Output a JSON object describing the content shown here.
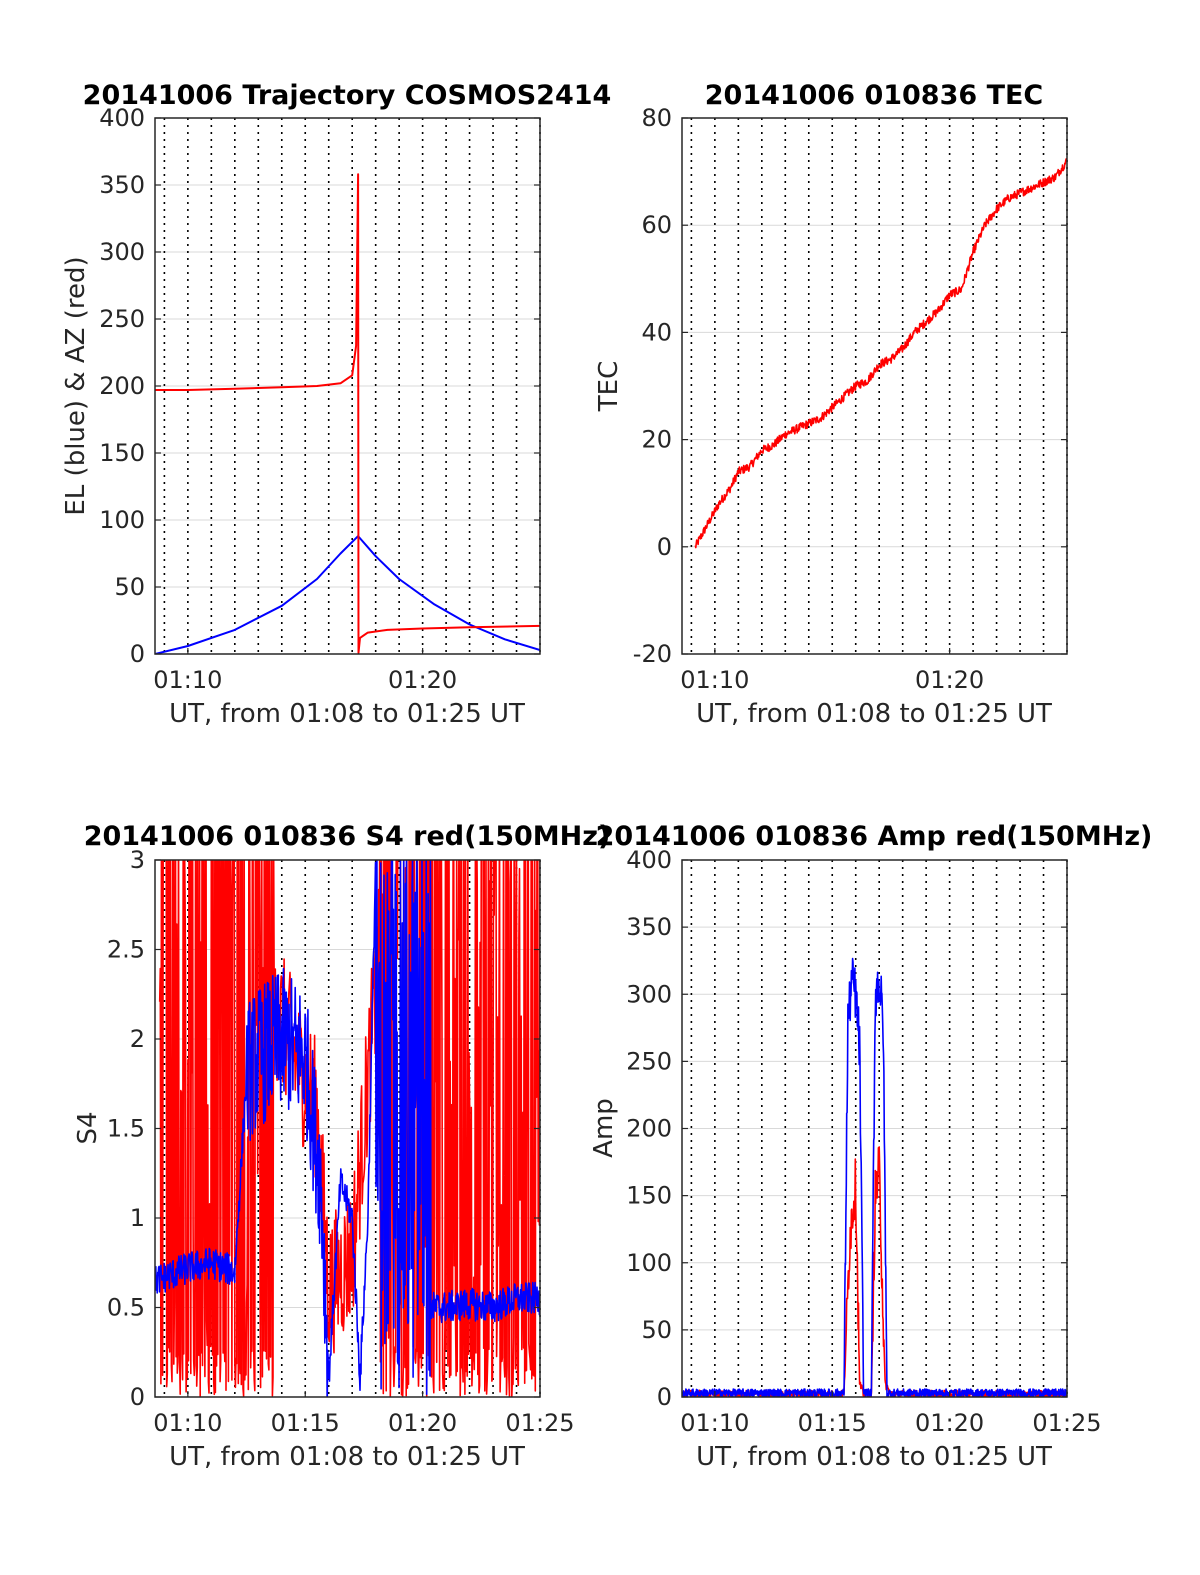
{
  "colors": {
    "el": "#0000ff",
    "az": "#ff0000",
    "grid": "#d9d9d9",
    "vline": "#000000"
  },
  "chart_data": [
    {
      "type": "line",
      "title": "20141006 Trajectory COSMOS2414",
      "xlabel": "UT, from 01:08 to 01:25 UT",
      "ylabel": "EL (blue) & AZ (red)",
      "xlim": [
        "01:08:36",
        "01:25:00"
      ],
      "ylim": [
        0,
        400
      ],
      "xticks": [
        "01:10",
        "01:20"
      ],
      "yticks": [
        0,
        50,
        100,
        150,
        200,
        250,
        300,
        350,
        400
      ],
      "vertical_dotted_lines": [
        "01:09:00",
        "01:10:00",
        "01:11:00",
        "01:12:00",
        "01:13:00",
        "01:14:00",
        "01:15:00",
        "01:16:00",
        "01:17:00",
        "01:18:00",
        "01:19:00",
        "01:20:00",
        "01:21:00",
        "01:22:00",
        "01:23:00",
        "01:24:00",
        "01:25:00"
      ],
      "series": [
        {
          "color": "blue",
          "x": [
            "01:08:36",
            "01:10:00",
            "01:12:00",
            "01:14:00",
            "01:15:30",
            "01:16:30",
            "01:17:15",
            "01:18:00",
            "01:19:00",
            "01:20:30",
            "01:22:00",
            "01:23:30",
            "01:25:00"
          ],
          "y": [
            0,
            6,
            18,
            36,
            56,
            75,
            88,
            73,
            56,
            37,
            22,
            11,
            3
          ]
        },
        {
          "color": "red",
          "x": [
            "01:08:36",
            "01:10:00",
            "01:12:00",
            "01:14:00",
            "01:15:30",
            "01:16:30",
            "01:17:00",
            "01:17:10",
            "01:17:15",
            "01:17:16",
            "01:17:20",
            "01:17:40",
            "01:18:30",
            "01:20:00",
            "01:22:00",
            "01:25:00"
          ],
          "y": [
            197,
            197,
            198,
            199,
            200,
            202,
            208,
            230,
            358,
            1,
            12,
            16,
            18,
            19,
            20,
            21
          ]
        }
      ]
    },
    {
      "type": "line",
      "title": "20141006 010836 TEC",
      "xlabel": "UT, from 01:08 to 01:25 UT",
      "ylabel": "TEC",
      "xlim": [
        "01:08:36",
        "01:25:00"
      ],
      "ylim": [
        -20,
        80
      ],
      "xticks": [
        "01:10",
        "01:20"
      ],
      "yticks": [
        -20,
        0,
        20,
        40,
        60,
        80
      ],
      "series": [
        {
          "color": "red",
          "x": [
            "01:09:10",
            "01:09:40",
            "01:10:10",
            "01:10:40",
            "01:11:00",
            "01:11:30",
            "01:12:00",
            "01:12:30",
            "01:13:00",
            "01:13:30",
            "01:14:00",
            "01:14:30",
            "01:15:00",
            "01:15:30",
            "01:16:00",
            "01:16:30",
            "01:17:00",
            "01:17:30",
            "01:18:00",
            "01:18:30",
            "01:19:00",
            "01:19:30",
            "01:20:00",
            "01:20:30",
            "01:21:00",
            "01:21:30",
            "01:22:00",
            "01:22:30",
            "01:23:00",
            "01:23:30",
            "01:24:00",
            "01:24:30",
            "01:25:00"
          ],
          "y": [
            0,
            4,
            8,
            11,
            14,
            15,
            18,
            19,
            21,
            22,
            23,
            24,
            26,
            28,
            30,
            31,
            34,
            35,
            37,
            40,
            42,
            44,
            47,
            48,
            55,
            60,
            63,
            65,
            66,
            67,
            68,
            69,
            72
          ]
        }
      ]
    },
    {
      "type": "line",
      "title": "20141006 010836 S4 red(150MHz)",
      "xlabel": "UT, from 01:08 to 01:25 UT",
      "ylabel": "S4",
      "xlim": [
        "01:08:36",
        "01:25:00"
      ],
      "ylim": [
        0,
        3
      ],
      "xticks": [
        "01:10",
        "01:15",
        "01:20",
        "01:25"
      ],
      "yticks": [
        0,
        0.5,
        1,
        1.5,
        2,
        2.5,
        3
      ],
      "series": [
        {
          "color": "red",
          "note_values": "dense saturated oscillation 0-3 over most of range",
          "x": [
            "01:09:00",
            "01:11:00",
            "01:13:00",
            "01:15:00",
            "01:16:00",
            "01:17:00",
            "01:18:00",
            "01:20:00",
            "01:22:00",
            "01:24:00",
            "01:25:00"
          ],
          "y": [
            3,
            0,
            3,
            1.8,
            0.8,
            0.4,
            3,
            0,
            3,
            0,
            3
          ]
        },
        {
          "color": "blue",
          "x": [
            "01:08:36",
            "01:10:00",
            "01:11:00",
            "01:12:00",
            "01:12:30",
            "01:13:00",
            "01:14:00",
            "01:15:00",
            "01:15:40",
            "01:16:00",
            "01:16:30",
            "01:17:00",
            "01:17:20",
            "01:17:40",
            "01:18:00",
            "01:19:00",
            "01:20:00",
            "01:21:00",
            "01:22:00",
            "01:23:00",
            "01:24:00",
            "01:25:00"
          ],
          "y": [
            0.65,
            0.72,
            0.75,
            0.7,
            1.8,
            1.9,
            2.0,
            1.9,
            1.2,
            0.1,
            1.2,
            1.0,
            0.1,
            1.0,
            3.0,
            1.5,
            0.5,
            0.5,
            0.52,
            0.5,
            0.55,
            0.55
          ]
        }
      ]
    },
    {
      "type": "line",
      "title": "20141006 010836 Amp red(150MHz)",
      "xlabel": "UT, from 01:08 to 01:25 UT",
      "ylabel": "Amp",
      "xlim": [
        "01:08:36",
        "01:25:00"
      ],
      "ylim": [
        0,
        400
      ],
      "xticks": [
        "01:10",
        "01:15",
        "01:20",
        "01:25"
      ],
      "yticks": [
        0,
        50,
        100,
        150,
        200,
        250,
        300,
        350,
        400
      ],
      "series": [
        {
          "color": "red",
          "x": [
            "01:08:36",
            "01:15:30",
            "01:15:45",
            "01:16:00",
            "01:16:10",
            "01:16:20",
            "01:16:40",
            "01:16:50",
            "01:17:00",
            "01:17:15",
            "01:17:30",
            "01:25:00"
          ],
          "y": [
            2,
            2,
            120,
            160,
            10,
            2,
            2,
            150,
            170,
            10,
            2,
            2
          ]
        },
        {
          "color": "blue",
          "x": [
            "01:08:36",
            "01:15:30",
            "01:15:40",
            "01:15:50",
            "01:16:00",
            "01:16:10",
            "01:16:20",
            "01:16:40",
            "01:16:50",
            "01:17:00",
            "01:17:10",
            "01:17:20",
            "01:17:30",
            "01:25:00"
          ],
          "y": [
            3,
            3,
            280,
            310,
            300,
            260,
            3,
            3,
            300,
            310,
            280,
            3,
            3,
            3
          ]
        }
      ]
    }
  ]
}
